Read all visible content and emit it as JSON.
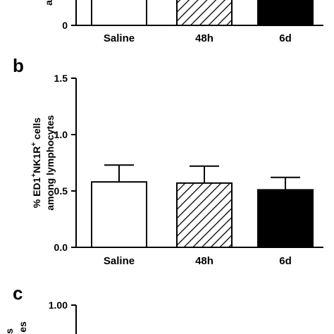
{
  "panels": {
    "a": {
      "letter": ""
    },
    "b": {
      "letter": "b"
    },
    "c": {
      "letter": "c"
    }
  },
  "chart_data": [
    {
      "type": "bar",
      "panel": "a",
      "categories": [
        "Saline",
        "48h",
        "6d"
      ],
      "ytick_labels": [
        "0"
      ],
      "fills": [
        "white",
        "hatched",
        "black"
      ],
      "ylabel_fragments": [
        "a"
      ],
      "cropped": true
    },
    {
      "type": "bar",
      "panel": "b",
      "categories": [
        "Saline",
        "48h",
        "6d"
      ],
      "values": [
        0.58,
        0.57,
        0.51
      ],
      "errors": [
        0.15,
        0.15,
        0.11
      ],
      "fills": [
        "white",
        "hatched",
        "black"
      ],
      "ylim": [
        0,
        1.5
      ],
      "ytick_labels": [
        "0.0",
        "0.5",
        "1.0",
        "1.5"
      ],
      "yticks": [
        0,
        0.5,
        1.0,
        1.5
      ],
      "ylabel_line1_parts": [
        "% ED1",
        "+",
        "NK1R",
        "+",
        " cells"
      ],
      "ylabel_line2": "among lymphocytes",
      "grid": false,
      "legend": "none"
    },
    {
      "type": "bar",
      "panel": "c",
      "ytick_labels": [
        "1.00"
      ],
      "ylabel_fragments": [
        "s",
        "es"
      ],
      "cropped": true
    }
  ]
}
